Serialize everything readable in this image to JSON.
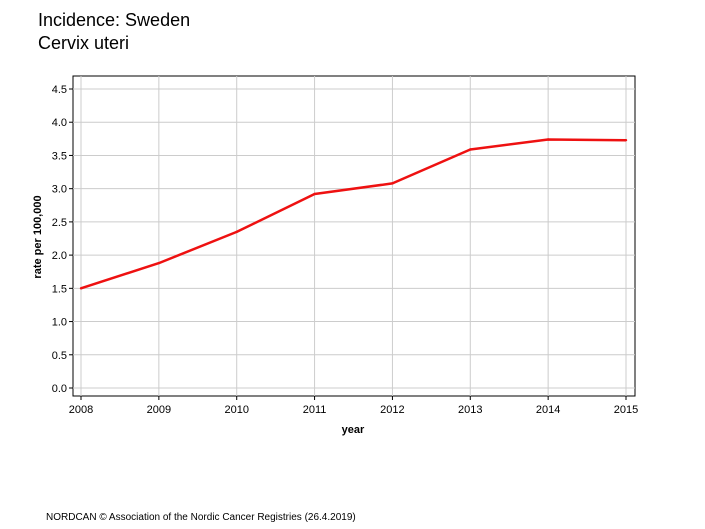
{
  "header": {
    "title": "Incidence: Sweden",
    "subtitle": "Cervix uteri"
  },
  "footer": {
    "text": "NORDCAN © Association of the Nordic Cancer Registries (26.4.2019)"
  },
  "colors": {
    "line": "#ee1111",
    "grid": "#cccccc",
    "axis": "#000000"
  },
  "chart_data": {
    "type": "line",
    "x": [
      2008,
      2009,
      2010,
      2011,
      2012,
      2013,
      2014,
      2015
    ],
    "xticks": [
      "2008",
      "2009",
      "2010",
      "2011",
      "2012",
      "2013",
      "2014",
      "2015"
    ],
    "series": [
      {
        "values": [
          1.5,
          1.88,
          2.35,
          2.92,
          3.08,
          3.59,
          3.74,
          3.73
        ]
      }
    ],
    "yticks": [
      "0.0",
      "0.5",
      "1.0",
      "1.5",
      "2.0",
      "2.5",
      "3.0",
      "3.5",
      "4.0",
      "4.5"
    ],
    "xlim": [
      2008,
      2015
    ],
    "ylim": [
      0.0,
      4.5
    ],
    "xlabel": "year",
    "ylabel": "rate per 100,000",
    "grid": true
  }
}
